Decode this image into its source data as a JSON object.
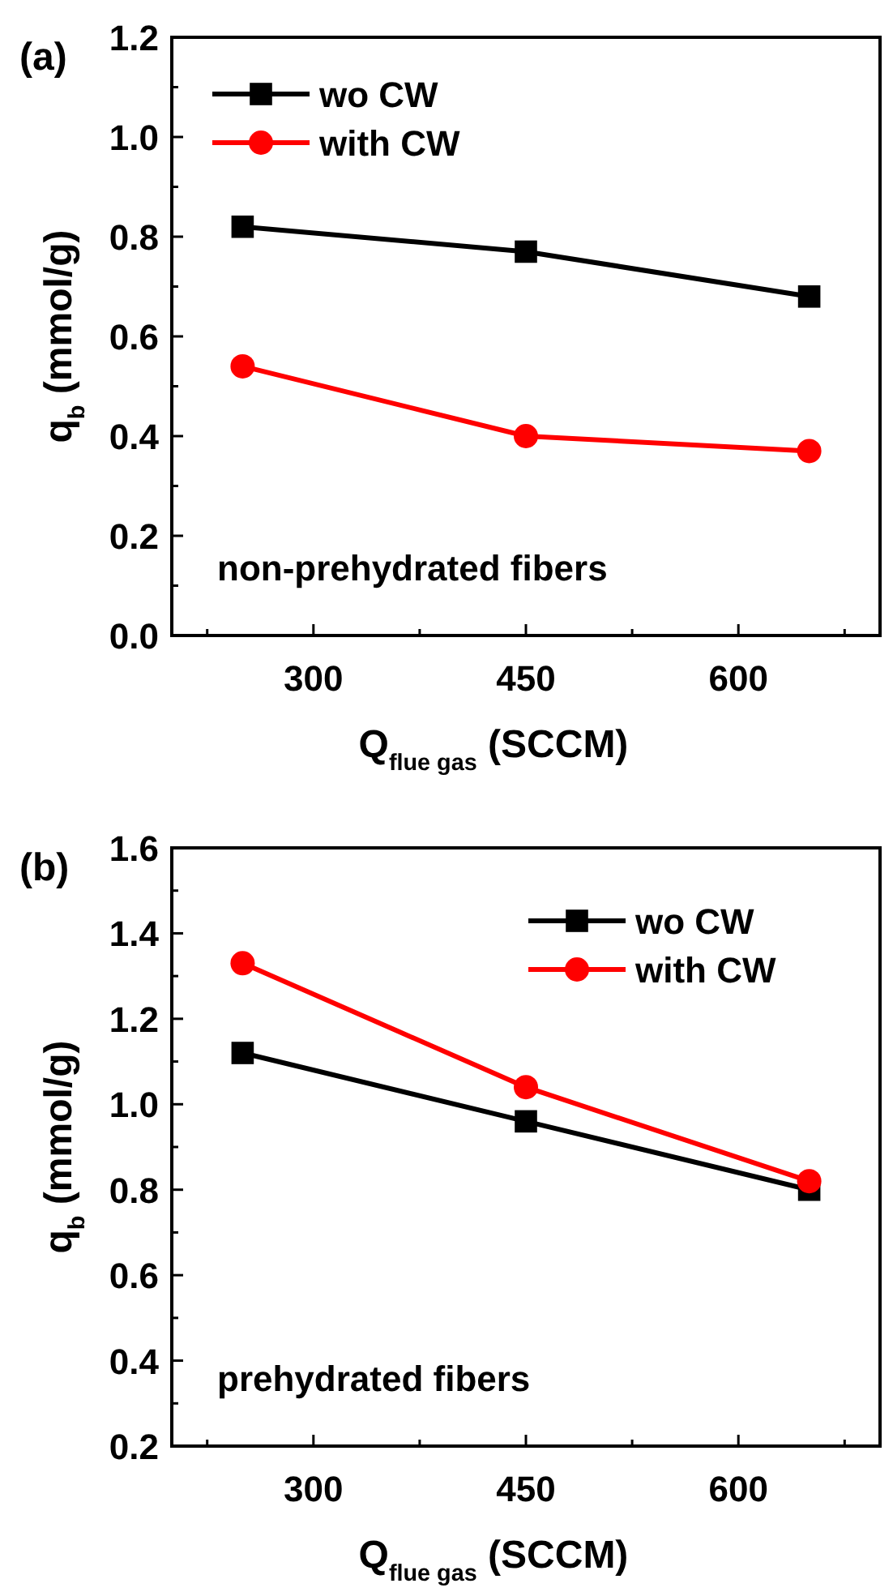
{
  "chart_data": [
    {
      "type": "line",
      "title": "(a)",
      "xlabel": "Q$_{flue gas}$ (SCCM)",
      "ylabel": "q$_{b}$ (mmol/g)",
      "x": [
        250,
        450,
        650
      ],
      "series": [
        {
          "name": "wo CW",
          "color": "#000000",
          "values": [
            0.82,
            0.77,
            0.68
          ],
          "marker": "square"
        },
        {
          "name": "with CW",
          "color": "#ff0000",
          "values": [
            0.54,
            0.4,
            0.37
          ],
          "marker": "circle"
        }
      ],
      "xlim": [
        200,
        700
      ],
      "xticks": [
        {
          "value": 225,
          "label": null
        },
        300,
        {
          "value": 375,
          "label": null
        },
        450,
        {
          "value": 525,
          "label": null
        },
        600,
        {
          "value": 675,
          "label": null
        }
      ],
      "ylim": [
        0,
        1.2
      ],
      "yticks": [
        {
          "value": 0,
          "label": "0.0"
        },
        {
          "value": 0.1,
          "label": null
        },
        0.2,
        {
          "value": 0.3,
          "label": null
        },
        0.4,
        {
          "value": 0.5,
          "label": null
        },
        0.6,
        {
          "value": 0.7,
          "label": null
        },
        0.8,
        {
          "value": 0.9,
          "label": null
        },
        {
          "value": 1,
          "label": "1.0"
        },
        {
          "value": 1.1,
          "label": null
        },
        1.2
      ],
      "legend": "top left",
      "grid": false,
      "annotations": [
        "non-prehydrated fibers"
      ]
    },
    {
      "type": "line",
      "title": "(b)",
      "xlabel": "Q$_{flue gas}$ (SCCM)",
      "ylabel": "q$_{b}$ (mmol/g)",
      "x": [
        250,
        450,
        650
      ],
      "series": [
        {
          "name": "wo CW",
          "color": "#000000",
          "values": [
            1.12,
            0.96,
            0.8
          ],
          "marker": "square"
        },
        {
          "name": "with CW",
          "color": "#ff0000",
          "values": [
            1.33,
            1.04,
            0.82
          ],
          "marker": "circle"
        }
      ],
      "xlim": [
        200,
        700
      ],
      "xticks": [
        {
          "value": 225,
          "label": null
        },
        300,
        {
          "value": 375,
          "label": null
        },
        450,
        {
          "value": 525,
          "label": null
        },
        600,
        {
          "value": 675,
          "label": null
        }
      ],
      "ylim": [
        0.2,
        1.6
      ],
      "yticks": [
        0.2,
        {
          "value": 0.3,
          "label": null
        },
        0.4,
        {
          "value": 0.5,
          "label": null
        },
        0.6,
        {
          "value": 0.7,
          "label": null
        },
        0.8,
        {
          "value": 0.9,
          "label": null
        },
        {
          "value": 1,
          "label": "1.0"
        },
        {
          "value": 1.1,
          "label": null
        },
        1.2,
        {
          "value": 1.3,
          "label": null
        },
        1.4,
        {
          "value": 1.5,
          "label": null
        },
        1.6
      ],
      "legend": "top right",
      "grid": false,
      "annotations": [
        "prehydrated fibers"
      ]
    }
  ]
}
